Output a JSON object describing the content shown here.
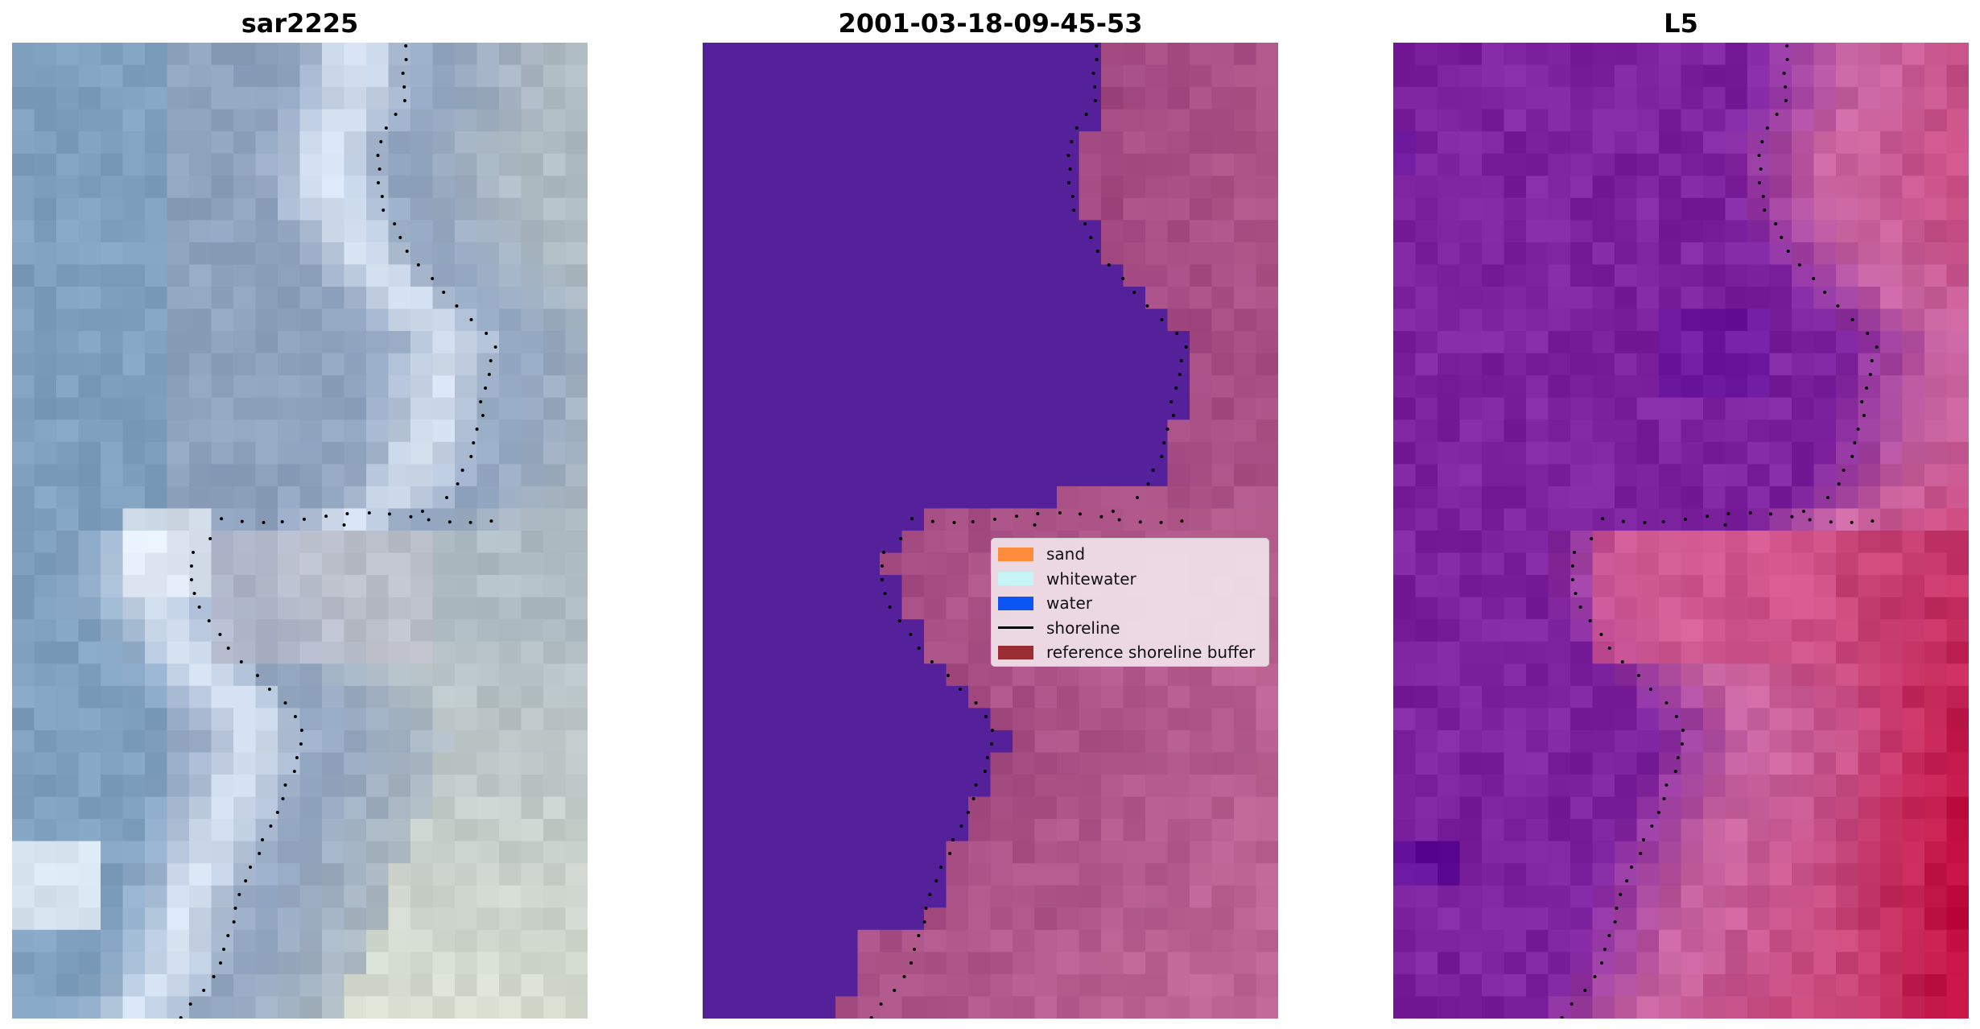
{
  "panels": {
    "left": {
      "title": "sar2225",
      "icon": "rgb-satellite-image"
    },
    "middle": {
      "title": "2001-03-18-09-45-53",
      "icon": "classified-image"
    },
    "right": {
      "title": "L5",
      "icon": "index-image"
    }
  },
  "legend": {
    "items": [
      {
        "label": "sand",
        "color": "#ff8c3c",
        "kind": "patch"
      },
      {
        "label": "whitewater",
        "color": "#c7f5f5",
        "kind": "patch"
      },
      {
        "label": "water",
        "color": "#0b56f2",
        "kind": "patch"
      },
      {
        "label": "shoreline",
        "color": "#000000",
        "kind": "line"
      },
      {
        "label": "reference shoreline buffer",
        "color": "#9a2c34",
        "kind": "patch"
      }
    ]
  },
  "colors": {
    "water_class": "#55219a",
    "land_class": "#a24f86",
    "shoreline": "#000000"
  }
}
